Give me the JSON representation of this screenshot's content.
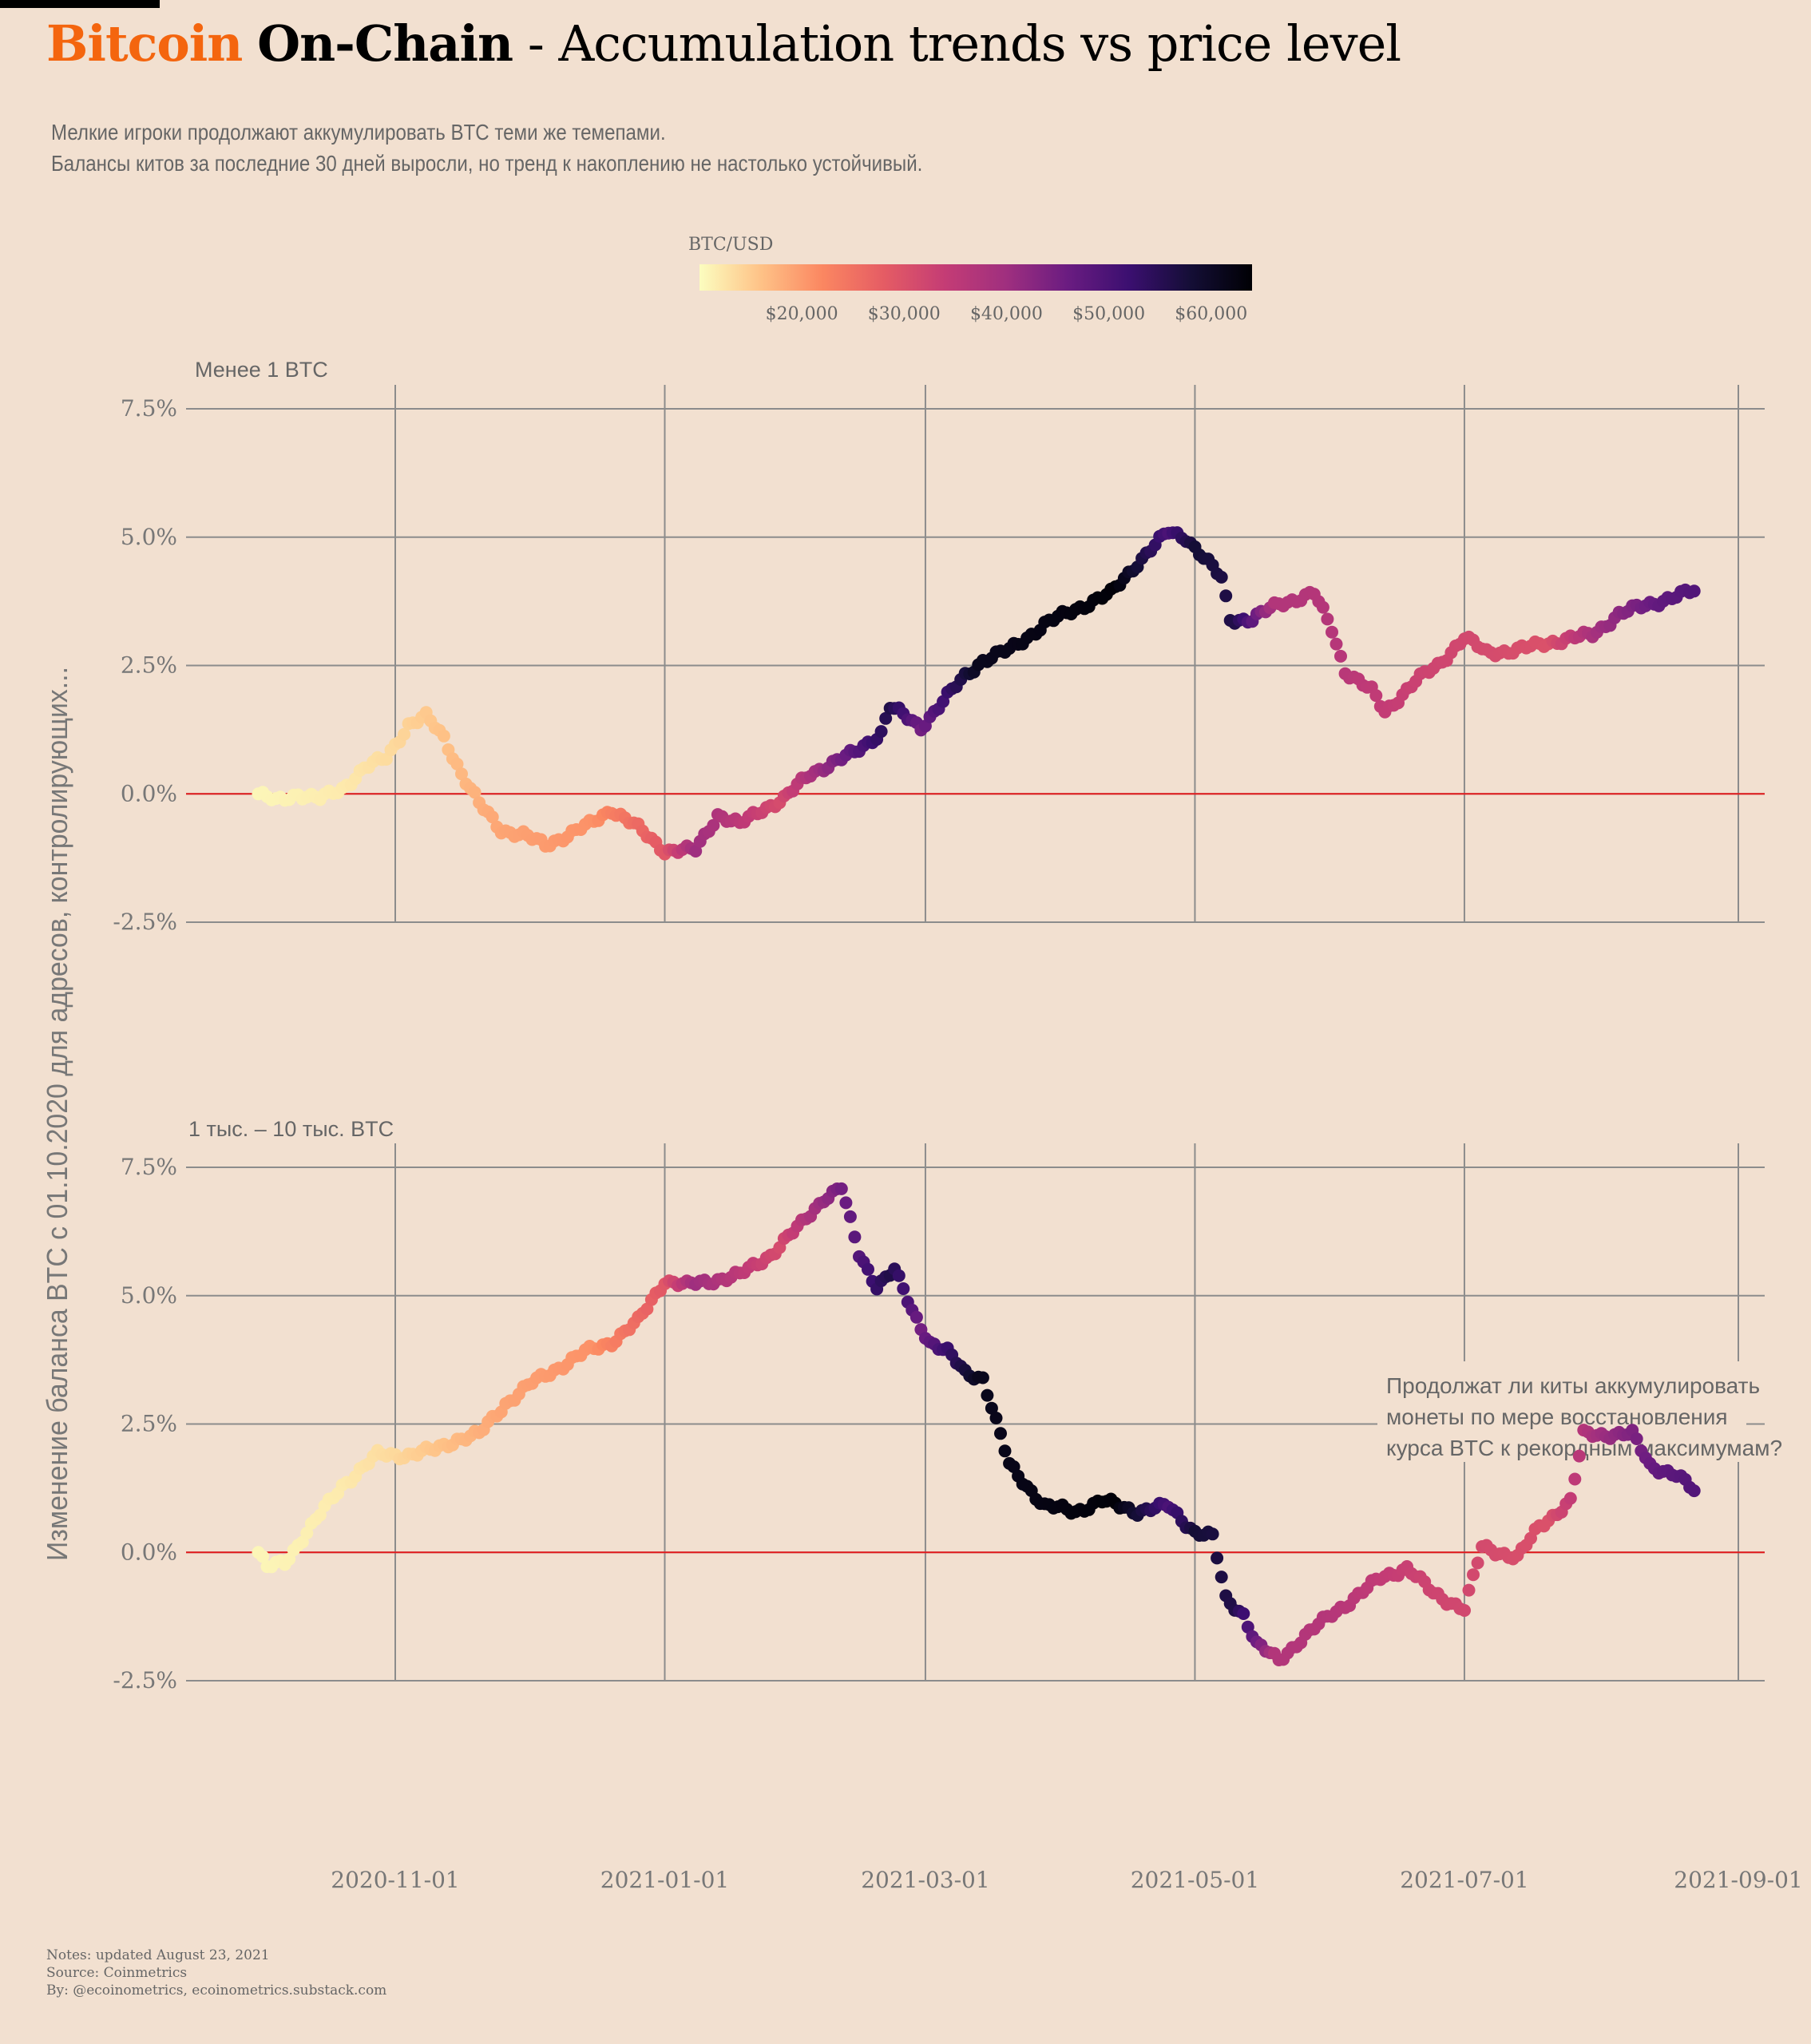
{
  "title": {
    "bitcoin": "Bitcoin",
    "onchain": "On-Chain",
    "rest": " - Accumulation trends vs price level"
  },
  "subtitle": {
    "line1": "Мелкие игроки продолжают аккумулировать BTC теми же темепами.",
    "line2": "Балансы китов за последние 30 дней выросли, но тренд к накоплению не настолько устойчивый."
  },
  "footer": {
    "notes": "Notes: updated August 23, 2021",
    "source": "Source: Coinmetrics",
    "by": "By: @ecoinometrics, ecoinometrics.substack.com"
  },
  "colors": {
    "background": "#f2e0d0",
    "title_accent": "#f4650e",
    "zero_line": "#e31a1c",
    "grid": "#8c8c8c",
    "text_muted": "#666666"
  },
  "chart_data": {
    "type": "scatter",
    "ylabel": "Изменение баланса BTC с 01.10.2020 для адресов, контролирующих...",
    "color_scale": {
      "title": "BTC/USD",
      "palette": "magma (reversed)",
      "range": [
        10000,
        64000
      ],
      "ticks": [
        20000,
        30000,
        40000,
        50000,
        60000
      ],
      "tick_labels": [
        "$20,000",
        "$30,000",
        "$40,000",
        "$50,000",
        "$60,000"
      ]
    },
    "x_axis": {
      "ticks": [
        "2020-11-01",
        "2021-01-01",
        "2021-03-01",
        "2021-05-01",
        "2021-07-01",
        "2021-09-01"
      ],
      "range": [
        "2020-10-01",
        "2021-08-22"
      ]
    },
    "y_axis": {
      "ticks": [
        -2.5,
        0,
        2.5,
        5,
        7.5
      ],
      "tick_labels": [
        "-2.5%",
        "0.0%",
        "2.5%",
        "5.0%",
        "7.5%"
      ],
      "range": [
        -2.5,
        7.5
      ]
    },
    "reference_line": {
      "y": 0
    },
    "price_anchors": {
      "dates": [
        "2020-10-01",
        "2020-10-20",
        "2020-11-01",
        "2020-11-25",
        "2020-12-16",
        "2021-01-01",
        "2021-01-08",
        "2021-01-27",
        "2021-02-10",
        "2021-02-21",
        "2021-02-28",
        "2021-03-13",
        "2021-04-13",
        "2021-04-25",
        "2021-05-01",
        "2021-05-10",
        "2021-05-19",
        "2021-06-01",
        "2021-06-22",
        "2021-07-20",
        "2021-08-01",
        "2021-08-14",
        "2021-08-22"
      ],
      "values": [
        10700,
        11900,
        13700,
        19000,
        21000,
        29000,
        40000,
        31000,
        45000,
        56000,
        45000,
        61000,
        63500,
        50000,
        58000,
        56000,
        37000,
        36500,
        32500,
        30000,
        40000,
        47000,
        49000
      ]
    },
    "panels": [
      {
        "label": "Менее 1 BTC",
        "series": {
          "dates": [
            "2020-10-01",
            "2020-10-05",
            "2020-10-10",
            "2020-10-15",
            "2020-10-20",
            "2020-10-25",
            "2020-10-30",
            "2020-11-04",
            "2020-11-08",
            "2020-11-12",
            "2020-11-16",
            "2020-11-20",
            "2020-11-25",
            "2020-11-30",
            "2020-12-05",
            "2020-12-10",
            "2020-12-15",
            "2020-12-20",
            "2020-12-25",
            "2021-01-01",
            "2021-01-08",
            "2021-01-13",
            "2021-01-18",
            "2021-01-23",
            "2021-01-28",
            "2021-02-03",
            "2021-02-08",
            "2021-02-13",
            "2021-02-19",
            "2021-02-21",
            "2021-02-28",
            "2021-03-05",
            "2021-03-10",
            "2021-03-14",
            "2021-03-20",
            "2021-03-28",
            "2021-04-04",
            "2021-04-12",
            "2021-04-18",
            "2021-04-25",
            "2021-04-29",
            "2021-05-04",
            "2021-05-07",
            "2021-05-09",
            "2021-05-14",
            "2021-05-20",
            "2021-05-28",
            "2021-06-01",
            "2021-06-04",
            "2021-06-10",
            "2021-06-13",
            "2021-06-20",
            "2021-06-25",
            "2021-07-01",
            "2021-07-06",
            "2021-07-13",
            "2021-07-20",
            "2021-07-30",
            "2021-08-05",
            "2021-08-12",
            "2021-08-22"
          ],
          "values": [
            0.0,
            -0.15,
            0.0,
            -0.1,
            0.1,
            0.5,
            0.7,
            1.35,
            1.5,
            1.1,
            0.4,
            -0.2,
            -0.7,
            -0.8,
            -1.0,
            -0.8,
            -0.6,
            -0.3,
            -0.6,
            -1.1,
            -1.1,
            -0.4,
            -0.6,
            -0.3,
            -0.1,
            0.4,
            0.6,
            0.8,
            1.2,
            1.7,
            1.3,
            1.8,
            2.3,
            2.6,
            2.8,
            3.3,
            3.6,
            3.9,
            4.5,
            5.1,
            5.0,
            4.5,
            4.2,
            3.4,
            3.4,
            3.7,
            3.9,
            3.2,
            2.4,
            2.0,
            1.6,
            2.2,
            2.5,
            3.05,
            2.75,
            2.8,
            2.95,
            3.1,
            3.5,
            3.7,
            3.95
          ]
        }
      },
      {
        "label": "1 тыс. – 10 тыс. BTC",
        "annotation": "Продолжат ли киты аккумулировать монеты по мере восстановления курса BTC к рекордным максимумам?",
        "series": {
          "dates": [
            "2020-10-01",
            "2020-10-03",
            "2020-10-07",
            "2020-10-12",
            "2020-10-20",
            "2020-10-28",
            "2020-11-04",
            "2020-11-10",
            "2020-11-15",
            "2020-11-20",
            "2020-11-26",
            "2020-12-02",
            "2020-12-08",
            "2020-12-14",
            "2020-12-20",
            "2020-12-26",
            "2021-01-01",
            "2021-01-06",
            "2021-01-12",
            "2021-01-18",
            "2021-01-25",
            "2021-02-01",
            "2021-02-06",
            "2021-02-10",
            "2021-02-14",
            "2021-02-18",
            "2021-02-22",
            "2021-02-26",
            "2021-03-02",
            "2021-03-06",
            "2021-03-10",
            "2021-03-14",
            "2021-03-20",
            "2021-03-28",
            "2021-04-04",
            "2021-04-10",
            "2021-04-18",
            "2021-04-25",
            "2021-05-01",
            "2021-05-05",
            "2021-05-08",
            "2021-05-12",
            "2021-05-15",
            "2021-05-20",
            "2021-05-25",
            "2021-06-01",
            "2021-06-06",
            "2021-06-12",
            "2021-06-18",
            "2021-06-24",
            "2021-07-01",
            "2021-07-05",
            "2021-07-13",
            "2021-07-18",
            "2021-07-25",
            "2021-07-28",
            "2021-08-02",
            "2021-08-08",
            "2021-08-12",
            "2021-08-18",
            "2021-08-22"
          ],
          "values": [
            0.0,
            -0.3,
            -0.2,
            0.4,
            1.3,
            1.9,
            1.9,
            2.0,
            2.2,
            2.3,
            2.9,
            3.3,
            3.6,
            3.9,
            4.1,
            4.5,
            5.3,
            5.2,
            5.3,
            5.4,
            5.8,
            6.4,
            6.9,
            7.1,
            5.8,
            5.2,
            5.5,
            4.7,
            4.1,
            3.9,
            3.5,
            3.4,
            1.7,
            0.9,
            0.8,
            1.0,
            0.8,
            0.9,
            0.4,
            0.3,
            -0.9,
            -1.2,
            -1.8,
            -2.1,
            -1.7,
            -1.2,
            -0.9,
            -0.5,
            -0.3,
            -0.8,
            -1.1,
            0.1,
            -0.1,
            0.5,
            1.0,
            2.3,
            2.3,
            2.3,
            1.7,
            1.5,
            1.2
          ]
        }
      }
    ]
  }
}
